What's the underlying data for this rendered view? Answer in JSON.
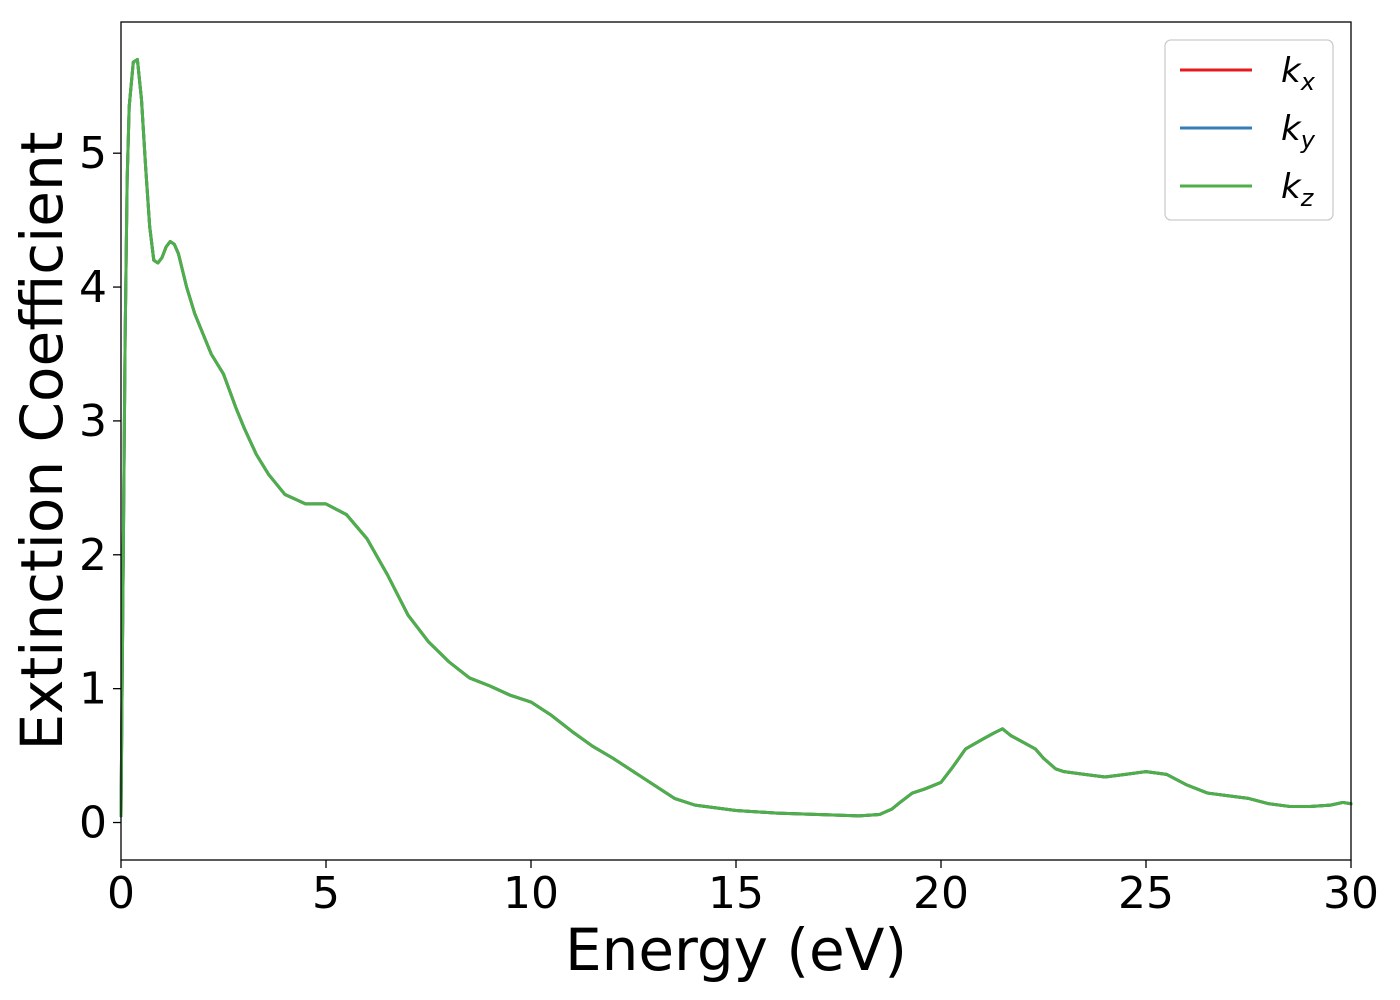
{
  "chart_data": {
    "type": "line",
    "title": "",
    "xlabel": "Energy (eV)",
    "ylabel": "Extinction Coefficient",
    "xlim": [
      0,
      30
    ],
    "ylim": [
      -0.28,
      5.98
    ],
    "xticks": [
      0,
      5,
      10,
      15,
      20,
      25,
      30
    ],
    "yticks": [
      0,
      1,
      2,
      3,
      4,
      5
    ],
    "grid": false,
    "legend_position": "top-right",
    "series": [
      {
        "name": "kx",
        "base": "k",
        "sub": "x",
        "color": "#e41a1c",
        "x": [
          0,
          0.05,
          0.1,
          0.15,
          0.2,
          0.3,
          0.4,
          0.5,
          0.6,
          0.7,
          0.8,
          0.9,
          1.0,
          1.1,
          1.2,
          1.3,
          1.4,
          1.6,
          1.8,
          2.0,
          2.2,
          2.5,
          2.8,
          3.0,
          3.3,
          3.6,
          4.0,
          4.5,
          5.0,
          5.5,
          6.0,
          6.5,
          7.0,
          7.5,
          8.0,
          8.5,
          9.0,
          9.5,
          10.0,
          10.5,
          11.0,
          11.5,
          12.0,
          12.5,
          13.0,
          13.5,
          14.0,
          15.0,
          16.0,
          17.0,
          18.0,
          18.5,
          18.8,
          19.0,
          19.3,
          19.6,
          20.0,
          20.3,
          20.6,
          21.0,
          21.3,
          21.5,
          21.7,
          22.0,
          22.3,
          22.5,
          22.8,
          23.0,
          23.5,
          24.0,
          24.5,
          25.0,
          25.5,
          26.0,
          26.5,
          27.0,
          27.5,
          28.0,
          28.5,
          29.0,
          29.5,
          29.8,
          30.0
        ],
        "y": [
          0.05,
          1.8,
          3.6,
          4.8,
          5.35,
          5.68,
          5.7,
          5.4,
          4.9,
          4.45,
          4.2,
          4.18,
          4.22,
          4.3,
          4.34,
          4.32,
          4.25,
          4.0,
          3.8,
          3.65,
          3.5,
          3.35,
          3.1,
          2.95,
          2.75,
          2.6,
          2.45,
          2.38,
          2.38,
          2.3,
          2.12,
          1.85,
          1.55,
          1.35,
          1.2,
          1.08,
          1.02,
          0.95,
          0.9,
          0.8,
          0.68,
          0.57,
          0.48,
          0.38,
          0.28,
          0.18,
          0.13,
          0.09,
          0.07,
          0.06,
          0.05,
          0.06,
          0.1,
          0.15,
          0.22,
          0.25,
          0.3,
          0.42,
          0.55,
          0.62,
          0.67,
          0.7,
          0.65,
          0.6,
          0.55,
          0.48,
          0.4,
          0.38,
          0.36,
          0.34,
          0.36,
          0.38,
          0.36,
          0.28,
          0.22,
          0.2,
          0.18,
          0.14,
          0.12,
          0.12,
          0.13,
          0.15,
          0.14
        ]
      },
      {
        "name": "ky",
        "base": "k",
        "sub": "y",
        "color": "#377eb8",
        "x": [
          0,
          0.05,
          0.1,
          0.15,
          0.2,
          0.3,
          0.4,
          0.5,
          0.6,
          0.7,
          0.8,
          0.9,
          1.0,
          1.1,
          1.2,
          1.3,
          1.4,
          1.6,
          1.8,
          2.0,
          2.2,
          2.5,
          2.8,
          3.0,
          3.3,
          3.6,
          4.0,
          4.5,
          5.0,
          5.5,
          6.0,
          6.5,
          7.0,
          7.5,
          8.0,
          8.5,
          9.0,
          9.5,
          10.0,
          10.5,
          11.0,
          11.5,
          12.0,
          12.5,
          13.0,
          13.5,
          14.0,
          15.0,
          16.0,
          17.0,
          18.0,
          18.5,
          18.8,
          19.0,
          19.3,
          19.6,
          20.0,
          20.3,
          20.6,
          21.0,
          21.3,
          21.5,
          21.7,
          22.0,
          22.3,
          22.5,
          22.8,
          23.0,
          23.5,
          24.0,
          24.5,
          25.0,
          25.5,
          26.0,
          26.5,
          27.0,
          27.5,
          28.0,
          28.5,
          29.0,
          29.5,
          29.8,
          30.0
        ],
        "y": [
          0.05,
          1.8,
          3.6,
          4.8,
          5.35,
          5.68,
          5.7,
          5.4,
          4.9,
          4.45,
          4.2,
          4.18,
          4.22,
          4.3,
          4.34,
          4.32,
          4.25,
          4.0,
          3.8,
          3.65,
          3.5,
          3.35,
          3.1,
          2.95,
          2.75,
          2.6,
          2.45,
          2.38,
          2.38,
          2.3,
          2.12,
          1.85,
          1.55,
          1.35,
          1.2,
          1.08,
          1.02,
          0.95,
          0.9,
          0.8,
          0.68,
          0.57,
          0.48,
          0.38,
          0.28,
          0.18,
          0.13,
          0.09,
          0.07,
          0.06,
          0.05,
          0.06,
          0.1,
          0.15,
          0.22,
          0.25,
          0.3,
          0.42,
          0.55,
          0.62,
          0.67,
          0.7,
          0.65,
          0.6,
          0.55,
          0.48,
          0.4,
          0.38,
          0.36,
          0.34,
          0.36,
          0.38,
          0.36,
          0.28,
          0.22,
          0.2,
          0.18,
          0.14,
          0.12,
          0.12,
          0.13,
          0.15,
          0.14
        ]
      },
      {
        "name": "kz",
        "base": "k",
        "sub": "z",
        "color": "#4daf4a",
        "x": [
          0,
          0.05,
          0.1,
          0.15,
          0.2,
          0.3,
          0.4,
          0.5,
          0.6,
          0.7,
          0.8,
          0.9,
          1.0,
          1.1,
          1.2,
          1.3,
          1.4,
          1.6,
          1.8,
          2.0,
          2.2,
          2.5,
          2.8,
          3.0,
          3.3,
          3.6,
          4.0,
          4.5,
          5.0,
          5.5,
          6.0,
          6.5,
          7.0,
          7.5,
          8.0,
          8.5,
          9.0,
          9.5,
          10.0,
          10.5,
          11.0,
          11.5,
          12.0,
          12.5,
          13.0,
          13.5,
          14.0,
          15.0,
          16.0,
          17.0,
          18.0,
          18.5,
          18.8,
          19.0,
          19.3,
          19.6,
          20.0,
          20.3,
          20.6,
          21.0,
          21.3,
          21.5,
          21.7,
          22.0,
          22.3,
          22.5,
          22.8,
          23.0,
          23.5,
          24.0,
          24.5,
          25.0,
          25.5,
          26.0,
          26.5,
          27.0,
          27.5,
          28.0,
          28.5,
          29.0,
          29.5,
          29.8,
          30.0
        ],
        "y": [
          0.05,
          1.8,
          3.6,
          4.8,
          5.35,
          5.68,
          5.7,
          5.4,
          4.9,
          4.45,
          4.2,
          4.18,
          4.22,
          4.3,
          4.34,
          4.32,
          4.25,
          4.0,
          3.8,
          3.65,
          3.5,
          3.35,
          3.1,
          2.95,
          2.75,
          2.6,
          2.45,
          2.38,
          2.38,
          2.3,
          2.12,
          1.85,
          1.55,
          1.35,
          1.2,
          1.08,
          1.02,
          0.95,
          0.9,
          0.8,
          0.68,
          0.57,
          0.48,
          0.38,
          0.28,
          0.18,
          0.13,
          0.09,
          0.07,
          0.06,
          0.05,
          0.06,
          0.1,
          0.15,
          0.22,
          0.25,
          0.3,
          0.42,
          0.55,
          0.62,
          0.67,
          0.7,
          0.65,
          0.6,
          0.55,
          0.48,
          0.4,
          0.38,
          0.36,
          0.34,
          0.36,
          0.38,
          0.36,
          0.28,
          0.22,
          0.2,
          0.18,
          0.14,
          0.12,
          0.12,
          0.13,
          0.15,
          0.14
        ]
      }
    ]
  }
}
